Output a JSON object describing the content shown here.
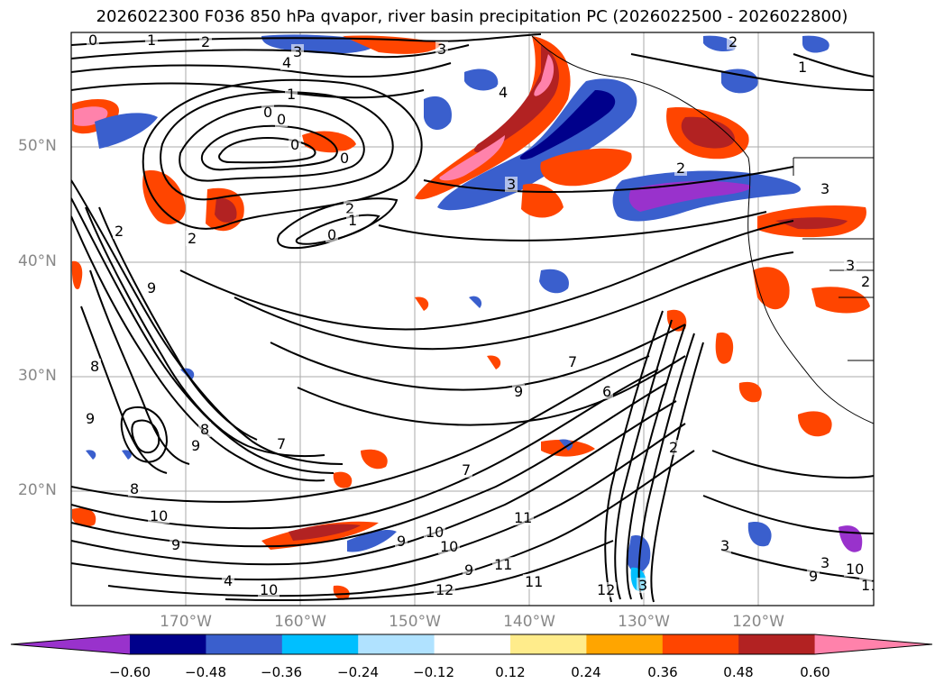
{
  "title": "2026022300 F036 850 hPa qvapor, river basin precipitation PC (2026022500 - 2026022800)",
  "latitude_labels": [
    "50°N",
    "40°N",
    "30°N",
    "20°N"
  ],
  "longitude_labels": [
    "170°W",
    "160°W",
    "150°W",
    "140°W",
    "130°W",
    "120°W"
  ],
  "colorbar": {
    "colors": [
      "#9932CC",
      "#00008B",
      "#3A5FCD",
      "#00BFFF",
      "#B0E2FF",
      "#FFFFFF",
      "#FFEC8B",
      "#FFA500",
      "#FF4500",
      "#B22222",
      "#FF82AB"
    ],
    "tick_labels": [
      "−0.60",
      "−0.48",
      "−0.36",
      "−0.24",
      "−0.12",
      "0.12",
      "0.24",
      "0.36",
      "0.48",
      "0.60"
    ]
  },
  "contour_labels": [
    "0",
    "1",
    "2",
    "4",
    "3",
    "0",
    "0",
    "1",
    "0",
    "0",
    "2",
    "1",
    "0",
    "2",
    "2",
    "4",
    "3",
    "3",
    "2",
    "3",
    "1",
    "2",
    "3",
    "2",
    "9",
    "8",
    "9",
    "9",
    "7",
    "8",
    "7",
    "9",
    "6",
    "7",
    "8",
    "10",
    "9",
    "4",
    "10",
    "9",
    "10",
    "10",
    "9",
    "11",
    "11",
    "12",
    "11",
    "12",
    "2",
    "3",
    "3",
    "10",
    "11",
    "9",
    "3"
  ]
}
